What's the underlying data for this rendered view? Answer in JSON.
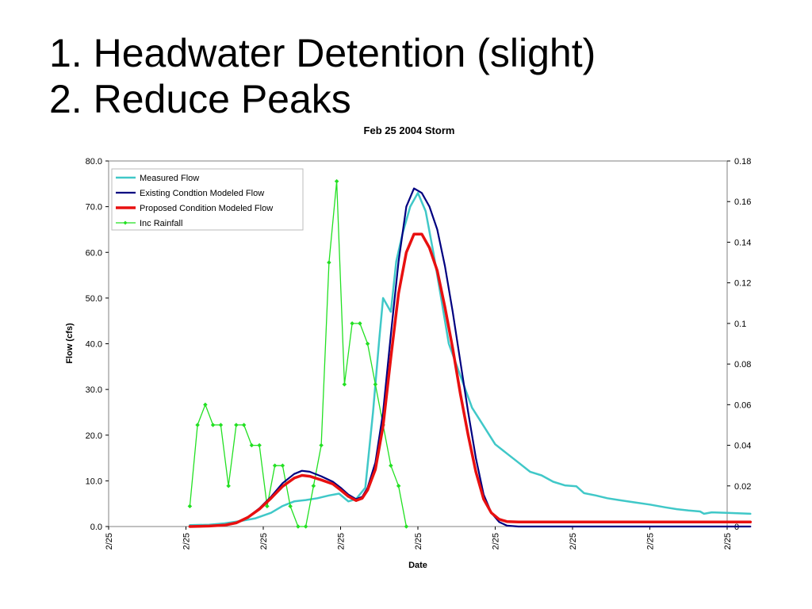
{
  "slide": {
    "title_line1": "1. Headwater Detention (slight)",
    "title_line2": "2. Reduce Peaks"
  },
  "chart_data": {
    "type": "line",
    "title": "Feb 25 2004 Storm",
    "xlabel": "Date",
    "ylabel": "Flow (cfs)",
    "y2label": "",
    "ylim": [
      0,
      80
    ],
    "y2lim": [
      0,
      0.18
    ],
    "xlim": [
      0,
      8
    ],
    "x_tick_labels": [
      "2/25",
      "2/25",
      "2/25",
      "2/25",
      "2/25",
      "2/25",
      "2/25",
      "2/25",
      "2/25"
    ],
    "y_tick_labels": [
      "0.0",
      "10.0",
      "20.0",
      "30.0",
      "40.0",
      "50.0",
      "60.0",
      "70.0",
      "80.0"
    ],
    "y2_tick_labels": [
      "0",
      "0.02",
      "0.04",
      "0.06",
      "0.08",
      "0.1",
      "0.12",
      "0.14",
      "0.16",
      "0.18"
    ],
    "legend_position": "top-left",
    "grid": false,
    "series": [
      {
        "name": "Measured Flow",
        "color": "#40C8C8",
        "axis": "left",
        "marker": "none",
        "points": [
          [
            1.05,
            0.3
          ],
          [
            1.3,
            0.4
          ],
          [
            1.5,
            0.7
          ],
          [
            1.7,
            1.2
          ],
          [
            1.9,
            1.8
          ],
          [
            2.1,
            3.0
          ],
          [
            2.25,
            4.5
          ],
          [
            2.4,
            5.5
          ],
          [
            2.55,
            5.8
          ],
          [
            2.7,
            6.2
          ],
          [
            2.85,
            6.8
          ],
          [
            2.98,
            7.2
          ],
          [
            3.1,
            5.5
          ],
          [
            3.2,
            6.0
          ],
          [
            3.32,
            8.5
          ],
          [
            3.42,
            25.0
          ],
          [
            3.5,
            41.0
          ],
          [
            3.55,
            50.0
          ],
          [
            3.65,
            47.0
          ],
          [
            3.72,
            58.0
          ],
          [
            3.8,
            64.0
          ],
          [
            3.9,
            70.0
          ],
          [
            4.0,
            73.0
          ],
          [
            4.1,
            69.0
          ],
          [
            4.2,
            60.0
          ],
          [
            4.3,
            50.0
          ],
          [
            4.4,
            40.0
          ],
          [
            4.55,
            33.0
          ],
          [
            4.7,
            26.0
          ],
          [
            4.85,
            22.0
          ],
          [
            5.0,
            18.0
          ],
          [
            5.15,
            16.0
          ],
          [
            5.3,
            14.0
          ],
          [
            5.45,
            12.0
          ],
          [
            5.6,
            11.2
          ],
          [
            5.75,
            9.8
          ],
          [
            5.9,
            9.0
          ],
          [
            6.05,
            8.8
          ],
          [
            6.15,
            7.3
          ],
          [
            6.3,
            6.8
          ],
          [
            6.45,
            6.2
          ],
          [
            6.6,
            5.8
          ],
          [
            6.8,
            5.3
          ],
          [
            7.0,
            4.8
          ],
          [
            7.2,
            4.2
          ],
          [
            7.35,
            3.8
          ],
          [
            7.5,
            3.5
          ],
          [
            7.65,
            3.3
          ],
          [
            7.7,
            2.8
          ],
          [
            7.8,
            3.1
          ],
          [
            8.0,
            3.0
          ],
          [
            8.3,
            2.8
          ]
        ]
      },
      {
        "name": "Existing Condtion Modeled Flow",
        "color": "#000080",
        "axis": "left",
        "marker": "none",
        "points": [
          [
            1.05,
            0.0
          ],
          [
            1.3,
            0.1
          ],
          [
            1.5,
            0.3
          ],
          [
            1.65,
            0.8
          ],
          [
            1.8,
            2.0
          ],
          [
            1.95,
            4.0
          ],
          [
            2.1,
            6.5
          ],
          [
            2.25,
            9.5
          ],
          [
            2.4,
            11.5
          ],
          [
            2.5,
            12.2
          ],
          [
            2.6,
            12.0
          ],
          [
            2.75,
            11.0
          ],
          [
            2.9,
            9.8
          ],
          [
            3.0,
            8.5
          ],
          [
            3.1,
            7.0
          ],
          [
            3.2,
            6.0
          ],
          [
            3.28,
            6.5
          ],
          [
            3.35,
            8.5
          ],
          [
            3.45,
            14.0
          ],
          [
            3.55,
            25.0
          ],
          [
            3.65,
            42.0
          ],
          [
            3.75,
            58.0
          ],
          [
            3.85,
            70.0
          ],
          [
            3.95,
            74.0
          ],
          [
            4.05,
            73.0
          ],
          [
            4.15,
            70.0
          ],
          [
            4.25,
            65.0
          ],
          [
            4.35,
            57.0
          ],
          [
            4.45,
            47.0
          ],
          [
            4.55,
            36.0
          ],
          [
            4.65,
            25.0
          ],
          [
            4.75,
            15.0
          ],
          [
            4.85,
            7.0
          ],
          [
            4.95,
            3.0
          ],
          [
            5.05,
            1.0
          ],
          [
            5.15,
            0.2
          ],
          [
            5.3,
            0.0
          ],
          [
            8.3,
            0.0
          ]
        ]
      },
      {
        "name": "Proposed Condition Modeled Flow",
        "color": "#E81010",
        "axis": "left",
        "marker": "none",
        "points": [
          [
            1.05,
            0.0
          ],
          [
            1.3,
            0.1
          ],
          [
            1.5,
            0.3
          ],
          [
            1.65,
            0.8
          ],
          [
            1.8,
            2.0
          ],
          [
            1.95,
            3.8
          ],
          [
            2.1,
            6.2
          ],
          [
            2.25,
            8.8
          ],
          [
            2.4,
            10.6
          ],
          [
            2.5,
            11.2
          ],
          [
            2.6,
            11.0
          ],
          [
            2.75,
            10.2
          ],
          [
            2.9,
            9.3
          ],
          [
            3.0,
            8.0
          ],
          [
            3.1,
            6.6
          ],
          [
            3.2,
            5.7
          ],
          [
            3.28,
            6.2
          ],
          [
            3.35,
            8.0
          ],
          [
            3.45,
            12.5
          ],
          [
            3.55,
            22.0
          ],
          [
            3.65,
            37.0
          ],
          [
            3.75,
            51.0
          ],
          [
            3.85,
            60.0
          ],
          [
            3.95,
            64.0
          ],
          [
            4.05,
            64.0
          ],
          [
            4.15,
            61.0
          ],
          [
            4.25,
            56.0
          ],
          [
            4.35,
            48.0
          ],
          [
            4.45,
            39.0
          ],
          [
            4.55,
            29.0
          ],
          [
            4.65,
            20.0
          ],
          [
            4.75,
            12.0
          ],
          [
            4.85,
            6.0
          ],
          [
            4.95,
            3.0
          ],
          [
            5.05,
            1.6
          ],
          [
            5.15,
            1.1
          ],
          [
            5.3,
            1.0
          ],
          [
            8.3,
            1.0
          ]
        ]
      },
      {
        "name": "Inc Rainfall",
        "color": "#22E022",
        "axis": "right",
        "marker": "diamond",
        "points": [
          [
            1.05,
            0.01
          ],
          [
            1.15,
            0.05
          ],
          [
            1.25,
            0.06
          ],
          [
            1.35,
            0.05
          ],
          [
            1.45,
            0.05
          ],
          [
            1.55,
            0.02
          ],
          [
            1.65,
            0.05
          ],
          [
            1.75,
            0.05
          ],
          [
            1.85,
            0.04
          ],
          [
            1.95,
            0.04
          ],
          [
            2.05,
            0.01
          ],
          [
            2.15,
            0.03
          ],
          [
            2.25,
            0.03
          ],
          [
            2.35,
            0.01
          ],
          [
            2.45,
            0.0
          ],
          [
            2.55,
            0.0
          ],
          [
            2.65,
            0.02
          ],
          [
            2.75,
            0.04
          ],
          [
            2.85,
            0.13
          ],
          [
            2.95,
            0.17
          ],
          [
            3.05,
            0.07
          ],
          [
            3.15,
            0.1
          ],
          [
            3.25,
            0.1
          ],
          [
            3.35,
            0.09
          ],
          [
            3.45,
            0.07
          ],
          [
            3.55,
            0.05
          ],
          [
            3.65,
            0.03
          ],
          [
            3.75,
            0.02
          ],
          [
            3.85,
            0.0
          ]
        ]
      }
    ]
  }
}
